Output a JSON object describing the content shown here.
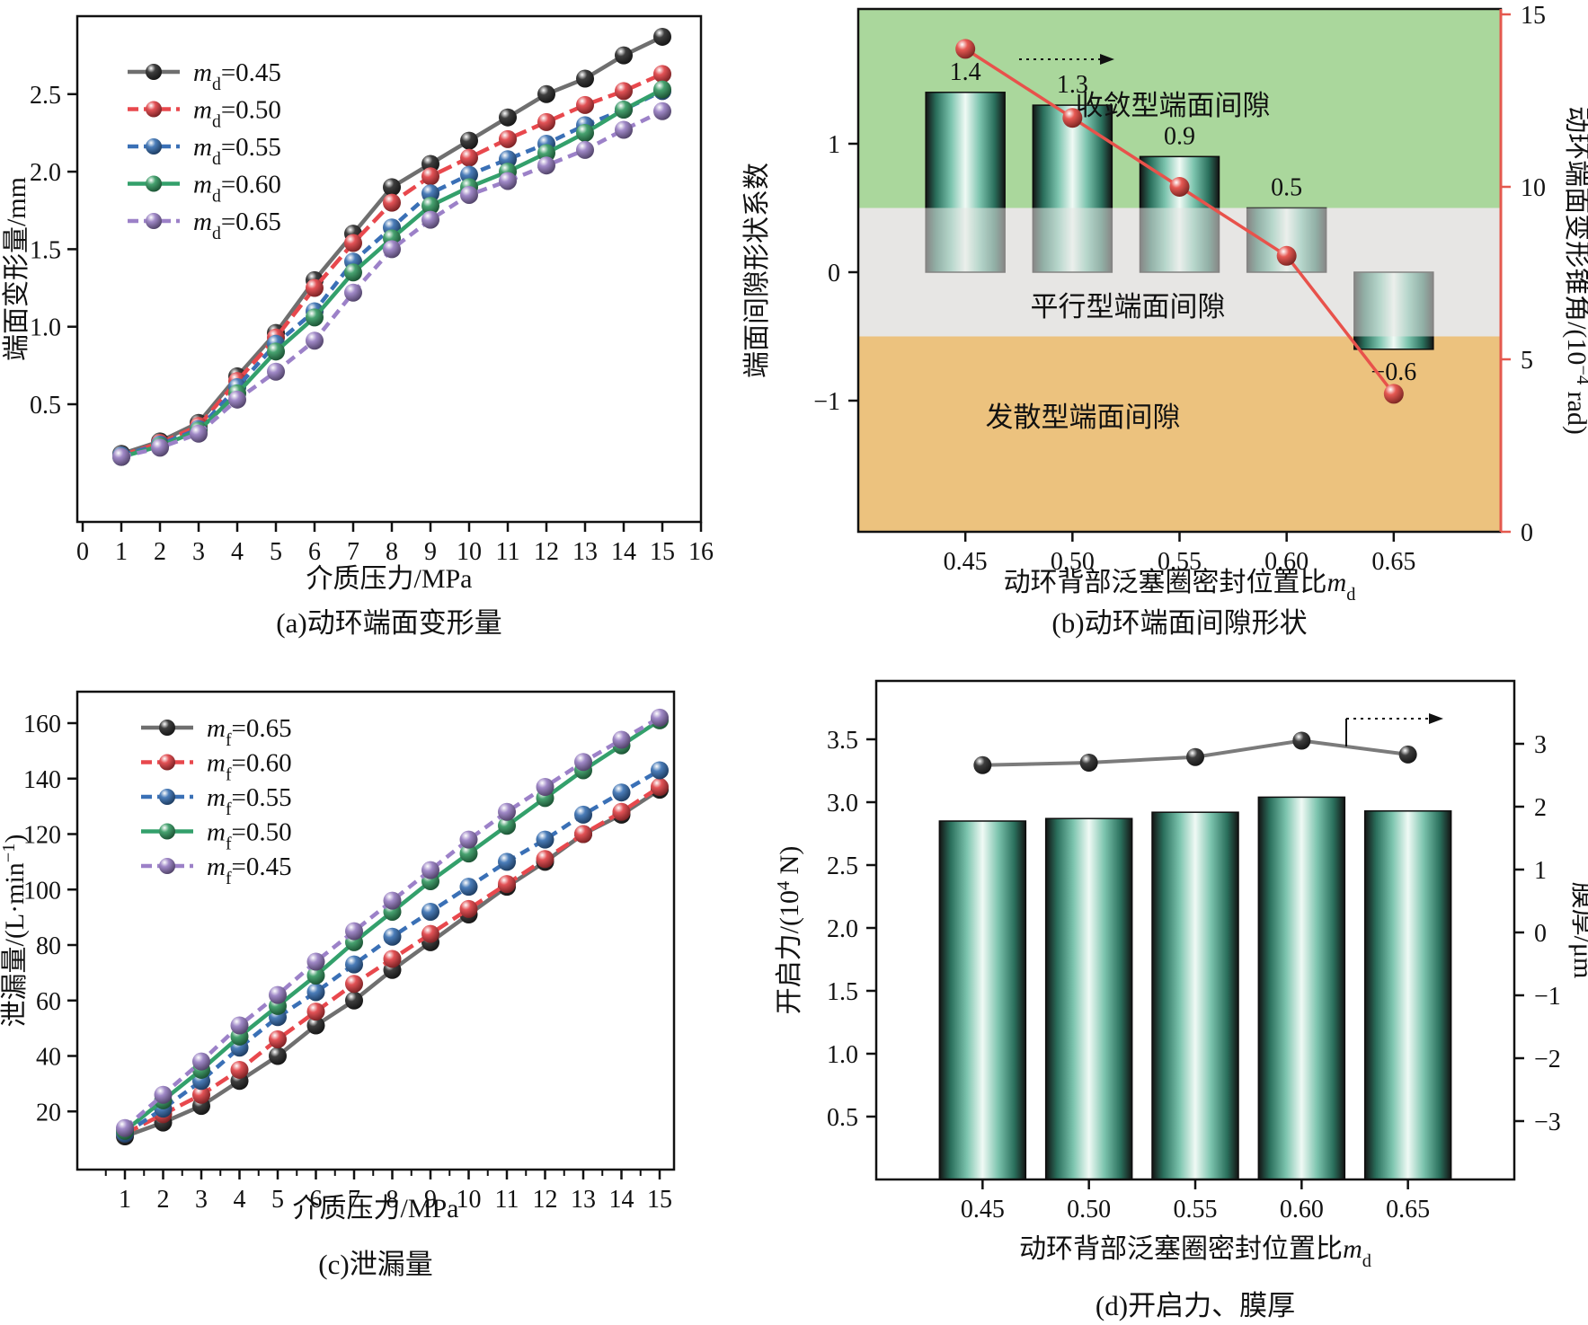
{
  "chart_data": {
    "a": {
      "type": "line",
      "caption": "(a)动环端面变形量",
      "xlabel": "介质压力/MPa",
      "ylabel_parts": [
        {
          "t": "端面变形量/mm"
        }
      ],
      "x_ticks": [
        "0",
        "1",
        "2",
        "3",
        "4",
        "5",
        "6",
        "7",
        "8",
        "9",
        "10",
        "11",
        "12",
        "13",
        "14",
        "15",
        "16"
      ],
      "y_ticks": [
        "0.5",
        "1.0",
        "1.5",
        "2.0",
        "2.5"
      ],
      "xlim": [
        0,
        16
      ],
      "ylim": [
        -0.26,
        3.0
      ],
      "x": [
        1,
        2,
        3,
        4,
        5,
        6,
        7,
        8,
        9,
        10,
        11,
        12,
        13,
        14,
        15
      ],
      "series": [
        {
          "key": "md045",
          "name_parts": [
            {
              "t": "m",
              "i": true
            },
            {
              "t": "d",
              "sub": true
            },
            {
              "t": "=0.45"
            }
          ],
          "line_color": "#6f6f6f",
          "marker_color": "#1c1c1c",
          "dash": "",
          "values": [
            0.18,
            0.26,
            0.38,
            0.68,
            0.96,
            1.3,
            1.6,
            1.9,
            2.05,
            2.2,
            2.35,
            2.5,
            2.6,
            2.75,
            2.87
          ]
        },
        {
          "key": "md050",
          "name_parts": [
            {
              "t": "m",
              "i": true
            },
            {
              "t": "d",
              "sub": true
            },
            {
              "t": "=0.50"
            }
          ],
          "line_color": "#e8484d",
          "marker_color": "#dd3338",
          "dash": "16 7",
          "values": [
            0.17,
            0.25,
            0.36,
            0.65,
            0.93,
            1.25,
            1.54,
            1.8,
            1.97,
            2.09,
            2.21,
            2.32,
            2.43,
            2.52,
            2.63
          ]
        },
        {
          "key": "md055",
          "name_parts": [
            {
              "t": "m",
              "i": true
            },
            {
              "t": "d",
              "sub": true
            },
            {
              "t": "=0.55"
            }
          ],
          "line_color": "#3a70b6",
          "marker_color": "#2b66ad",
          "dash": "11 7",
          "values": [
            0.17,
            0.24,
            0.34,
            0.61,
            0.89,
            1.1,
            1.42,
            1.64,
            1.86,
            1.98,
            2.08,
            2.18,
            2.3,
            2.4,
            2.52
          ]
        },
        {
          "key": "md060",
          "name_parts": [
            {
              "t": "m",
              "i": true
            },
            {
              "t": "d",
              "sub": true
            },
            {
              "t": "=0.60"
            }
          ],
          "line_color": "#33a06b",
          "marker_color": "#279257",
          "dash": "",
          "values": [
            0.16,
            0.23,
            0.33,
            0.57,
            0.84,
            1.06,
            1.35,
            1.57,
            1.78,
            1.9,
            2.0,
            2.12,
            2.25,
            2.4,
            2.53
          ]
        },
        {
          "key": "md065",
          "name_parts": [
            {
              "t": "m",
              "i": true
            },
            {
              "t": "d",
              "sub": true
            },
            {
              "t": "=0.65"
            }
          ],
          "line_color": "#9c81c8",
          "marker_color": "#8f74bd",
          "dash": "11 7",
          "values": [
            0.16,
            0.22,
            0.31,
            0.53,
            0.71,
            0.91,
            1.22,
            1.5,
            1.69,
            1.85,
            1.94,
            2.04,
            2.14,
            2.27,
            2.39
          ]
        }
      ]
    },
    "b": {
      "type": "bar+line",
      "caption": "(b)动环端面间隙形状",
      "xlabel_parts": [
        {
          "t": "动环背部泛塞圈密封位置比"
        },
        {
          "t": "m",
          "i": true
        },
        {
          "t": "d",
          "sub": true
        }
      ],
      "ylabel_parts": [
        {
          "t": "端面间隙形状系数"
        }
      ],
      "y2label_parts": [
        {
          "t": "动环端面变形锥角/(10"
        },
        {
          "t": "−4",
          "sup": true
        },
        {
          "t": " rad)"
        }
      ],
      "categories": [
        "0.45",
        "0.50",
        "0.55",
        "0.60",
        "0.65"
      ],
      "bars": [
        1.4,
        1.3,
        0.9,
        0.5,
        -0.6
      ],
      "bar_labels": [
        "1.4",
        "1.3",
        "0.9",
        "0.5",
        "−0.6"
      ],
      "line_right": [
        14,
        12,
        10,
        8,
        4
      ],
      "left_ticks": [
        {
          "v": -1,
          "label": "−1"
        },
        {
          "v": 0,
          "label": "0"
        },
        {
          "v": 1,
          "label": "1"
        }
      ],
      "right_ticks": [
        {
          "v": 0,
          "label": "0"
        },
        {
          "v": 5,
          "label": "5"
        },
        {
          "v": 10,
          "label": "10"
        },
        {
          "v": 15,
          "label": "15"
        }
      ],
      "ylim_left": [
        -2.02,
        2.05
      ],
      "ylim_right": [
        0,
        15.16
      ],
      "zones": [
        {
          "from": 0.5,
          "to": 2.05,
          "color": "#aad79c",
          "label": "收敛型端面间隙"
        },
        {
          "from": -0.5,
          "to": 0.5,
          "color": "#e7e6e4",
          "label": "平行型端面间隙"
        },
        {
          "from": -2.02,
          "to": -0.5,
          "color": "#ecc27e",
          "label": "发散型端面间隙"
        }
      ],
      "line_color": "#e8524b",
      "marker_color": "#e23c35",
      "right_axis_color": "#e4584e",
      "bar_gradient": [
        "#141414",
        "#2a6f5c",
        "#7cc4ae",
        "#f0faf5"
      ]
    },
    "c": {
      "type": "line",
      "caption": "(c)泄漏量",
      "xlabel": "介质压力/MPa",
      "ylabel_parts": [
        {
          "t": "泄漏量/(L·min"
        },
        {
          "t": "−1",
          "sup": true
        },
        {
          "t": ")"
        }
      ],
      "x_ticks": [
        "1",
        "2",
        "3",
        "4",
        "5",
        "6",
        "7",
        "8",
        "9",
        "10",
        "11",
        "12",
        "13",
        "14",
        "15"
      ],
      "y_ticks": [
        "20",
        "40",
        "60",
        "80",
        "100",
        "120",
        "140",
        "160"
      ],
      "xlim": [
        -0.25,
        15.4
      ],
      "ylim": [
        0,
        172
      ],
      "x": [
        1,
        2,
        3,
        4,
        5,
        6,
        7,
        8,
        9,
        10,
        11,
        12,
        13,
        14,
        15
      ],
      "series": [
        {
          "key": "mf065",
          "name_parts": [
            {
              "t": "m",
              "i": true
            },
            {
              "t": "f",
              "sub": true
            },
            {
              "t": "=0.65"
            }
          ],
          "line_color": "#6f6f6f",
          "marker_color": "#1c1c1c",
          "dash": "",
          "values": [
            11,
            16,
            22,
            31,
            40,
            51,
            60,
            71,
            81,
            91,
            101,
            110,
            120,
            127,
            136
          ]
        },
        {
          "key": "mf060",
          "name_parts": [
            {
              "t": "m",
              "i": true
            },
            {
              "t": "f",
              "sub": true
            },
            {
              "t": "=0.60"
            }
          ],
          "line_color": "#e8484d",
          "marker_color": "#dd3338",
          "dash": "16 7",
          "values": [
            12,
            19,
            26,
            35,
            46,
            56,
            66,
            75,
            84,
            93,
            102,
            111,
            120,
            128,
            137
          ]
        },
        {
          "key": "mf055",
          "name_parts": [
            {
              "t": "m",
              "i": true
            },
            {
              "t": "f",
              "sub": true
            },
            {
              "t": "=0.55"
            }
          ],
          "line_color": "#3a70b6",
          "marker_color": "#2b66ad",
          "dash": "11 7",
          "values": [
            12,
            21,
            31,
            43,
            54,
            63,
            73,
            83,
            92,
            101,
            110,
            118,
            127,
            135,
            143
          ]
        },
        {
          "key": "mf050",
          "name_parts": [
            {
              "t": "m",
              "i": true
            },
            {
              "t": "f",
              "sub": true
            },
            {
              "t": "=0.50"
            }
          ],
          "line_color": "#33a06b",
          "marker_color": "#279257",
          "dash": "",
          "values": [
            13,
            24,
            35,
            47,
            58,
            69,
            81,
            92,
            103,
            113,
            123,
            133,
            143,
            152,
            161
          ]
        },
        {
          "key": "mf045",
          "name_parts": [
            {
              "t": "m",
              "i": true
            },
            {
              "t": "f",
              "sub": true
            },
            {
              "t": "=0.45"
            }
          ],
          "line_color": "#9c81c8",
          "marker_color": "#8f74bd",
          "dash": "11 7",
          "values": [
            14,
            26,
            38,
            51,
            62,
            74,
            85,
            96,
            107,
            118,
            128,
            137,
            146,
            154,
            162
          ]
        }
      ]
    },
    "d": {
      "type": "bar+line",
      "caption": "(d)开启力、膜厚",
      "xlabel_parts": [
        {
          "t": "动环背部泛塞圈密封位置比"
        },
        {
          "t": "m",
          "i": true
        },
        {
          "t": "d",
          "sub": true
        }
      ],
      "ylabel_parts": [
        {
          "t": "开启力/(10"
        },
        {
          "t": "4",
          "sup": true
        },
        {
          "t": " N)"
        }
      ],
      "y2label_parts": [
        {
          "t": "膜厚/μm"
        }
      ],
      "categories": [
        "0.45",
        "0.50",
        "0.55",
        "0.60",
        "0.65"
      ],
      "bars": [
        2.85,
        2.87,
        2.92,
        3.04,
        2.93
      ],
      "line_right": [
        2.66,
        2.7,
        2.79,
        3.05,
        2.83
      ],
      "left_ticks": [
        {
          "v": 0.5,
          "label": "0.5"
        },
        {
          "v": 1.0,
          "label": "1.0"
        },
        {
          "v": 1.5,
          "label": "1.5"
        },
        {
          "v": 2.0,
          "label": "2.0"
        },
        {
          "v": 2.5,
          "label": "2.5"
        },
        {
          "v": 3.0,
          "label": "3.0"
        },
        {
          "v": 3.5,
          "label": "3.5"
        }
      ],
      "right_ticks": [
        {
          "v": 3,
          "label": "3"
        },
        {
          "v": 2,
          "label": "2"
        },
        {
          "v": 1,
          "label": "1"
        },
        {
          "v": 0,
          "label": "0"
        },
        {
          "v": -1,
          "label": "−1"
        },
        {
          "v": -2,
          "label": "−2"
        },
        {
          "v": -3,
          "label": "−3"
        }
      ],
      "ylim_left": [
        0,
        3.96
      ],
      "ylim_right": [
        -3.93,
        4.07
      ],
      "line_color": "#7b7b7b",
      "marker_color": "#1c1c1c",
      "bar_gradient": [
        "#141414",
        "#2a6f5c",
        "#7cc4ae",
        "#f0faf5"
      ]
    }
  }
}
